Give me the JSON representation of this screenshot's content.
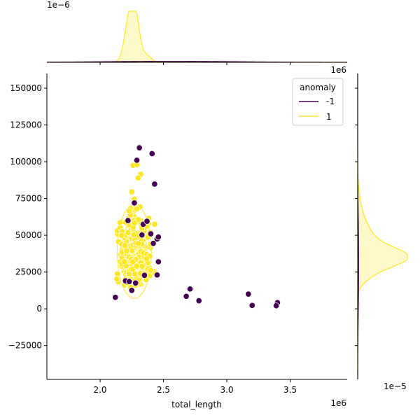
{
  "chart_data": {
    "type": "scatter",
    "variant": "jointplot-with-kde-marginals",
    "xlabel": "total_length",
    "ylabel": "",
    "x_offset_label": "1e6",
    "y_offset_label": "1e6",
    "top_marginal_offset_label": "1e−6",
    "right_marginal_offset_label": "1e−5",
    "xlim": [
      1.58,
      3.95
    ],
    "ylim": [
      -48000,
      160000
    ],
    "x_ticks": [
      2.0,
      2.5,
      3.0,
      3.5
    ],
    "x_tick_labels": [
      "2.0",
      "2.5",
      "3.0",
      "3.5"
    ],
    "y_ticks": [
      -25000,
      0,
      25000,
      50000,
      75000,
      100000,
      125000,
      150000
    ],
    "y_tick_labels": [
      "−25000",
      "0",
      "25000",
      "50000",
      "75000",
      "100000",
      "125000",
      "150000"
    ],
    "grid": false,
    "legend": {
      "title": "anomaly",
      "placement": "top-right",
      "entries": [
        {
          "label": "-1",
          "color": "#440154"
        },
        {
          "label": "1",
          "color": "#fde725"
        }
      ]
    },
    "series": [
      {
        "name": "-1",
        "color": "#440154",
        "points": [
          [
            2.31,
            109500
          ],
          [
            2.41,
            105500
          ],
          [
            2.29,
            101000
          ],
          [
            2.43,
            84800
          ],
          [
            2.27,
            72000
          ],
          [
            2.34,
            57500
          ],
          [
            2.37,
            59500
          ],
          [
            2.45,
            47500
          ],
          [
            2.46,
            48800
          ],
          [
            2.4,
            51000
          ],
          [
            2.33,
            50200
          ],
          [
            2.46,
            32000
          ],
          [
            2.45,
            23000
          ],
          [
            2.35,
            22800
          ],
          [
            2.2,
            19000
          ],
          [
            2.23,
            18500
          ],
          [
            2.25,
            12500
          ],
          [
            2.12,
            7800
          ],
          [
            2.71,
            13500
          ],
          [
            2.68,
            8500
          ],
          [
            2.78,
            5500
          ],
          [
            3.17,
            10000
          ],
          [
            3.2,
            2300
          ],
          [
            3.4,
            4200
          ],
          [
            3.39,
            2100
          ],
          [
            2.28,
            17500
          ],
          [
            2.42,
            44500
          ],
          [
            2.22,
            60000
          ]
        ]
      },
      {
        "name": "1",
        "color": "#fde725",
        "cluster": {
          "center": [
            2.27,
            38000
          ],
          "sd": [
            0.055,
            11500
          ],
          "count": 340
        },
        "points": [
          [
            2.26,
            97500
          ],
          [
            2.29,
            98000
          ],
          [
            2.32,
            91500
          ],
          [
            2.3,
            89000
          ],
          [
            2.25,
            79500
          ],
          [
            2.27,
            74500
          ],
          [
            2.23,
            66500
          ],
          [
            2.29,
            68000
          ],
          [
            2.37,
            56000
          ],
          [
            2.43,
            57500
          ],
          [
            2.2,
            20000
          ],
          [
            2.24,
            14500
          ],
          [
            2.28,
            16000
          ],
          [
            2.39,
            22500
          ]
        ]
      }
    ],
    "marginal_x": {
      "series": [
        {
          "name": "-1",
          "color": "#440154",
          "center": 2.55,
          "width": 0.5,
          "peak": 0.02
        },
        {
          "name": "1",
          "color": "#fde725",
          "center": 2.25,
          "width": 0.05,
          "peak": 1.0
        }
      ]
    },
    "marginal_y": {
      "series": [
        {
          "name": "-1",
          "color": "#440154",
          "center": 30000,
          "width": 30000,
          "peak": 0.02
        },
        {
          "name": "1",
          "color": "#fde725",
          "center": 36000,
          "width": 11000,
          "peak": 1.0
        }
      ]
    }
  }
}
